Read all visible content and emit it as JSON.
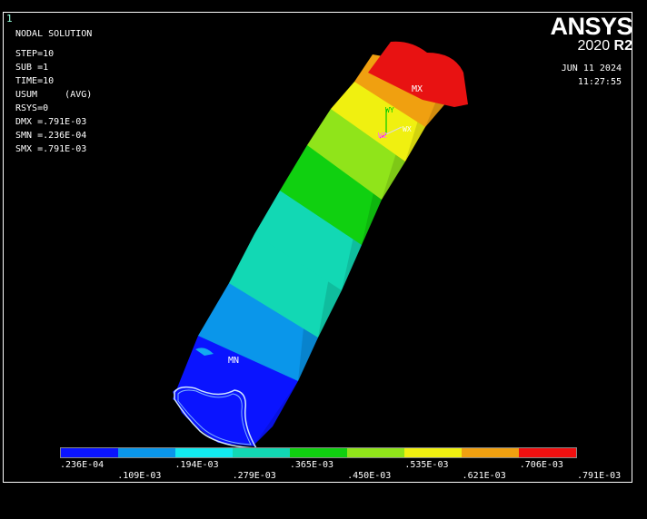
{
  "window_number": "1",
  "info": {
    "title": "NODAL SOLUTION",
    "step": "STEP=10",
    "sub": "SUB =1",
    "time": "TIME=10",
    "usum": "USUM     (AVG)",
    "rsys": "RSYS=0",
    "dmx": "DMX =.791E-03",
    "smn": "SMN =.236E-04",
    "smx": "SMX =.791E-03"
  },
  "logo": {
    "brand": "ANSYS",
    "version": "2020",
    "release": "R2"
  },
  "date": "JUN 11 2024",
  "time": "11:27:55",
  "markers": {
    "max": "MX",
    "min": "MN"
  },
  "triad": {
    "x": "WX",
    "y": "WY",
    "z": "WZ"
  },
  "legend": {
    "colors": [
      "#0a14ff",
      "#0a96ea",
      "#12eaf0",
      "#12d8b4",
      "#10d010",
      "#90e41a",
      "#f0f010",
      "#f0a010",
      "#f01010"
    ],
    "labels_top": [
      ".236E-04",
      ".194E-03",
      ".365E-03",
      ".535E-03",
      ".706E-03"
    ],
    "labels_bottom": [
      ".109E-03",
      ".279E-03",
      ".450E-03",
      ".621E-03",
      ".791E-03"
    ]
  }
}
